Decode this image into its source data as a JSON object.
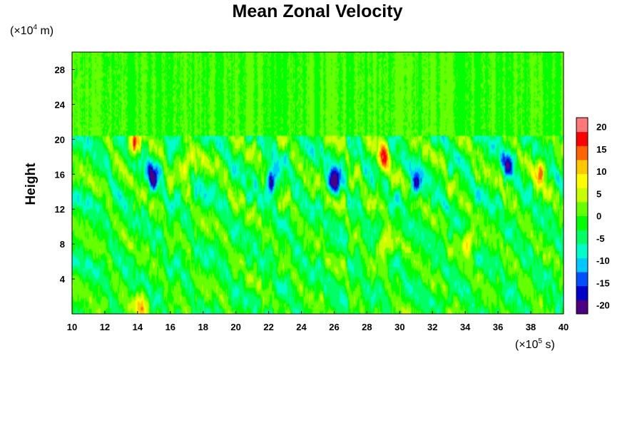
{
  "chart_data": {
    "type": "heatmap",
    "title": "Mean Zonal Velocity",
    "ylabel": "Height",
    "xlabel": "",
    "x_unit": {
      "prefix": "(×10",
      "exp": "5",
      "suffix": " s)"
    },
    "y_unit": {
      "prefix": "(×10",
      "exp": "4",
      "suffix": " m)"
    },
    "xlim": [
      10,
      40
    ],
    "ylim": [
      0,
      30
    ],
    "x_ticks": [
      10,
      12,
      14,
      16,
      18,
      20,
      22,
      24,
      26,
      28,
      30,
      32,
      34,
      36,
      38,
      40
    ],
    "y_ticks": [
      4,
      8,
      12,
      16,
      20,
      24,
      28
    ],
    "colorbar": {
      "range": [
        -22,
        22
      ],
      "ticks": [
        20,
        15,
        10,
        5,
        0,
        -5,
        -10,
        -15,
        -20
      ],
      "colors": [
        "#4b0082",
        "#0000c8",
        "#0050ff",
        "#00c8ff",
        "#00ffc8",
        "#00ff64",
        "#00ff00",
        "#64ff00",
        "#c8ff00",
        "#ffff00",
        "#ffc800",
        "#ff6400",
        "#ff0000",
        "#ff7878"
      ]
    },
    "field_description_ranges": {
      "x": [
        10,
        40
      ],
      "y": [
        0,
        30
      ],
      "value_range_observed": [
        -20,
        19
      ],
      "calm_above_height": 20
    },
    "features": [
      {
        "x": 22.2,
        "y": 15.5,
        "value": -19
      },
      {
        "x": 26.0,
        "y": 15.0,
        "value": -18
      },
      {
        "x": 14.9,
        "y": 15.8,
        "value": -16
      },
      {
        "x": 31.0,
        "y": 14.8,
        "value": -14
      },
      {
        "x": 36.6,
        "y": 17.5,
        "value": -13
      },
      {
        "x": 29.0,
        "y": 17.8,
        "value": 18
      },
      {
        "x": 13.8,
        "y": 19.5,
        "value": 15
      },
      {
        "x": 17.0,
        "y": 17.5,
        "value": 13
      },
      {
        "x": 38.6,
        "y": 16.5,
        "value": 14
      },
      {
        "x": 34.2,
        "y": 8.2,
        "value": 13
      },
      {
        "x": 14.2,
        "y": 1.0,
        "value": 12
      },
      {
        "x": 29.1,
        "y": 8.0,
        "value": 12
      }
    ]
  }
}
